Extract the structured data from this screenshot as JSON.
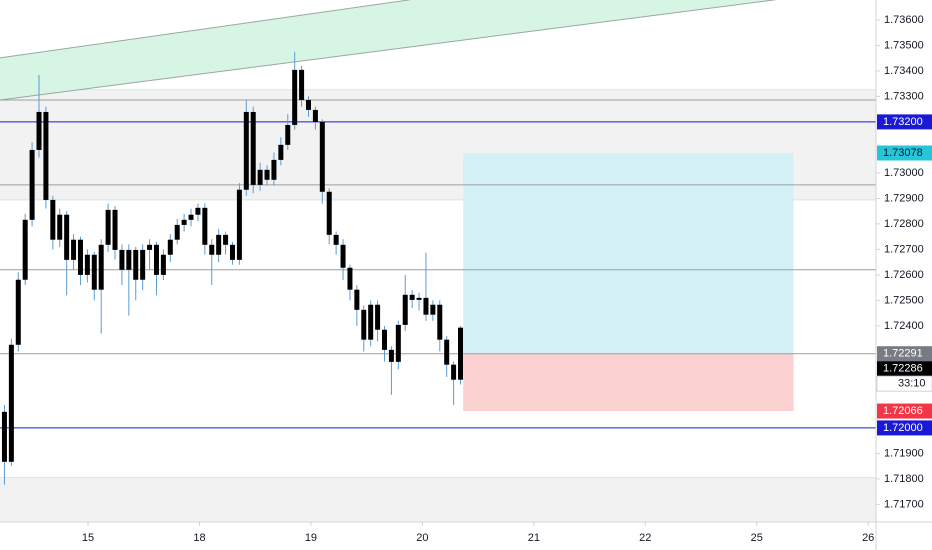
{
  "chart_data": {
    "type": "candlestick",
    "x": [
      -0.75,
      -0.688,
      -0.626,
      -0.564,
      -0.502,
      -0.44,
      -0.378,
      -0.316,
      -0.254,
      -0.192,
      -0.13,
      -0.068,
      -0.006,
      0.056,
      0.118,
      0.18,
      0.242,
      0.304,
      0.366,
      0.428,
      0.49,
      0.552,
      0.614,
      0.676,
      0.738,
      0.8,
      0.862,
      0.924,
      0.986,
      1.048,
      1.11,
      1.172,
      1.234,
      1.296,
      1.358,
      1.42,
      1.482,
      1.544,
      1.606,
      1.668,
      1.73,
      1.792,
      1.854,
      1.916,
      1.978,
      2.04,
      2.102,
      2.164,
      2.226,
      2.288,
      2.35,
      2.412,
      2.474,
      2.536,
      2.598,
      2.66,
      2.722,
      2.784,
      2.846,
      2.908,
      2.97,
      3.032,
      3.094,
      3.156,
      3.218,
      3.28,
      3.342
    ],
    "open": [
      1.72063,
      1.71867,
      1.72326,
      1.72581,
      1.72816,
      1.7309,
      1.73239,
      1.72894,
      1.72738,
      1.72836,
      1.72659,
      1.72738,
      1.726,
      1.72679,
      1.72542,
      1.72718,
      1.72855,
      1.72698,
      1.7262,
      1.72698,
      1.72581,
      1.72698,
      1.72718,
      1.726,
      1.72679,
      1.72738,
      1.72796,
      1.72816,
      1.72836,
      1.72863,
      1.72718,
      1.72679,
      1.72757,
      1.72718,
      1.72659,
      1.72934,
      1.73239,
      1.72953,
      1.73012,
      1.72973,
      1.73051,
      1.7311,
      1.73188,
      1.73404,
      1.73286,
      1.73247,
      1.732,
      1.72926,
      1.72757,
      1.72718,
      1.72628,
      1.72542,
      1.72463,
      1.72346,
      1.72483,
      1.72385,
      1.72306,
      1.72259,
      1.72404,
      1.72522,
      1.72502,
      1.7251,
      1.72444,
      1.72483,
      1.72346,
      1.72248,
      1.72189
    ],
    "high": [
      1.7209,
      1.7235,
      1.7261,
      1.7284,
      1.7312,
      1.73384,
      1.7326,
      1.7291,
      1.7286,
      1.7285,
      1.7276,
      1.7275,
      1.727,
      1.7269,
      1.7274,
      1.7288,
      1.7287,
      1.7272,
      1.7272,
      1.7271,
      1.7272,
      1.7274,
      1.7273,
      1.727,
      1.7276,
      1.7282,
      1.7284,
      1.7286,
      1.7288,
      1.7288,
      1.7274,
      1.7278,
      1.7277,
      1.7273,
      1.7296,
      1.73286,
      1.7326,
      1.7304,
      1.7303,
      1.7308,
      1.7314,
      1.7323,
      1.73475,
      1.7342,
      1.733,
      1.7326,
      1.7321,
      1.7294,
      1.7277,
      1.7274,
      1.7264,
      1.7256,
      1.7248,
      1.725,
      1.725,
      1.724,
      1.7232,
      1.7242,
      1.726,
      1.7254,
      1.7253,
      1.72687,
      1.725,
      1.725,
      1.7236,
      1.7226,
      1.724
    ],
    "low": [
      1.71777,
      1.7185,
      1.723,
      1.7256,
      1.7279,
      1.7306,
      1.7286,
      1.727,
      1.7271,
      1.7252,
      1.7262,
      1.7256,
      1.7257,
      1.725,
      1.7237,
      1.7269,
      1.7266,
      1.7256,
      1.7244,
      1.725,
      1.7254,
      1.7262,
      1.7252,
      1.7258,
      1.7265,
      1.7272,
      1.7277,
      1.7279,
      1.7281,
      1.7268,
      1.7256,
      1.7265,
      1.7268,
      1.7264,
      1.7264,
      1.7291,
      1.7292,
      1.7293,
      1.7295,
      1.7295,
      1.7303,
      1.7309,
      1.7317,
      1.7326,
      1.7322,
      1.7317,
      1.7288,
      1.7272,
      1.7268,
      1.7258,
      1.725,
      1.724,
      1.723,
      1.7232,
      1.7234,
      1.7226,
      1.7213,
      1.7223,
      1.7238,
      1.7247,
      1.7246,
      1.7242,
      1.7242,
      1.723,
      1.722,
      1.7209,
      1.7217
    ],
    "close": [
      1.71867,
      1.72326,
      1.72581,
      1.72816,
      1.7309,
      1.73239,
      1.72894,
      1.72738,
      1.72836,
      1.72659,
      1.72738,
      1.726,
      1.72679,
      1.72542,
      1.72718,
      1.72855,
      1.72698,
      1.7262,
      1.72698,
      1.72581,
      1.72698,
      1.72718,
      1.726,
      1.72679,
      1.72738,
      1.72796,
      1.72816,
      1.72836,
      1.72863,
      1.72718,
      1.72679,
      1.72757,
      1.72718,
      1.72659,
      1.72934,
      1.73239,
      1.72953,
      1.73012,
      1.72973,
      1.73051,
      1.7311,
      1.73188,
      1.73404,
      1.73286,
      1.73247,
      1.732,
      1.72926,
      1.72757,
      1.72718,
      1.72628,
      1.72542,
      1.72463,
      1.72346,
      1.72483,
      1.72385,
      1.72306,
      1.72259,
      1.72404,
      1.72522,
      1.72502,
      1.7251,
      1.72444,
      1.72483,
      1.72346,
      1.72248,
      1.72189,
      1.72393
    ],
    "body_color": "#000000",
    "wick_color": "#5b9bd5",
    "xlim": [
      -0.79,
      7.07
    ],
    "ylim": [
      1.71631,
      1.73678
    ],
    "xticks": [
      {
        "value": 0,
        "label": "15"
      },
      {
        "value": 1,
        "label": "18"
      },
      {
        "value": 2,
        "label": "19"
      },
      {
        "value": 3,
        "label": "20"
      },
      {
        "value": 4,
        "label": "21"
      },
      {
        "value": 5,
        "label": "22"
      },
      {
        "value": 6,
        "label": "25"
      },
      {
        "value": 7,
        "label": "26"
      }
    ],
    "yticks": [
      {
        "value": 1.736,
        "label": "1.73600"
      },
      {
        "value": 1.735,
        "label": "1.73500"
      },
      {
        "value": 1.734,
        "label": "1.73400"
      },
      {
        "value": 1.733,
        "label": "1.73300"
      },
      {
        "value": 1.73,
        "label": "1.73000"
      },
      {
        "value": 1.729,
        "label": "1.72900"
      },
      {
        "value": 1.728,
        "label": "1.72800"
      },
      {
        "value": 1.727,
        "label": "1.72700"
      },
      {
        "value": 1.726,
        "label": "1.72600"
      },
      {
        "value": 1.725,
        "label": "1.72500"
      },
      {
        "value": 1.724,
        "label": "1.72400"
      },
      {
        "value": 1.719,
        "label": "1.71900"
      },
      {
        "value": 1.718,
        "label": "1.71800"
      },
      {
        "value": 1.717,
        "label": "1.71700"
      }
    ],
    "zones": [
      {
        "from": 1.72894,
        "to": 1.73326,
        "color": "#f2f2f2"
      },
      {
        "from": 1.71631,
        "to": 1.71805,
        "color": "#f2f2f2"
      }
    ],
    "channel": {
      "color": "#d6f5e4",
      "line_color": "#9aa8a0",
      "lower": {
        "x": [
          -0.79,
          6.167
        ],
        "y": [
          1.73286,
          1.73679
        ]
      },
      "upper": {
        "x": [
          -0.79,
          2.89
        ],
        "y": [
          1.73451,
          1.73679
        ]
      }
    },
    "levels": [
      {
        "value": 1.732,
        "label": "1.73200",
        "color": "#1a1ad6"
      },
      {
        "value": 1.72,
        "label": "1.72000",
        "color": "#1a1ad6"
      },
      {
        "value": 1.73286,
        "color": "#9e9e9e"
      },
      {
        "value": 1.72953,
        "color": "#9e9e9e"
      },
      {
        "value": 1.7262,
        "color": "#9e9e9e"
      }
    ],
    "position": {
      "x_start": 3.366,
      "x_end": 6.33,
      "entry": 1.72291,
      "entry_label": "1.72291",
      "entry_color": "#787b86",
      "target": 1.73078,
      "target_label": "1.73078",
      "target_color": "#26c6da",
      "stop": 1.72066,
      "stop_label": "1.72066",
      "stop_color": "#f23645",
      "profit_color": "#d3f1f6",
      "loss_color": "#fbd0d0"
    },
    "last_price": {
      "value": 1.72286,
      "label": "1.72286",
      "countdown": "33:10",
      "color": "#000000"
    }
  }
}
